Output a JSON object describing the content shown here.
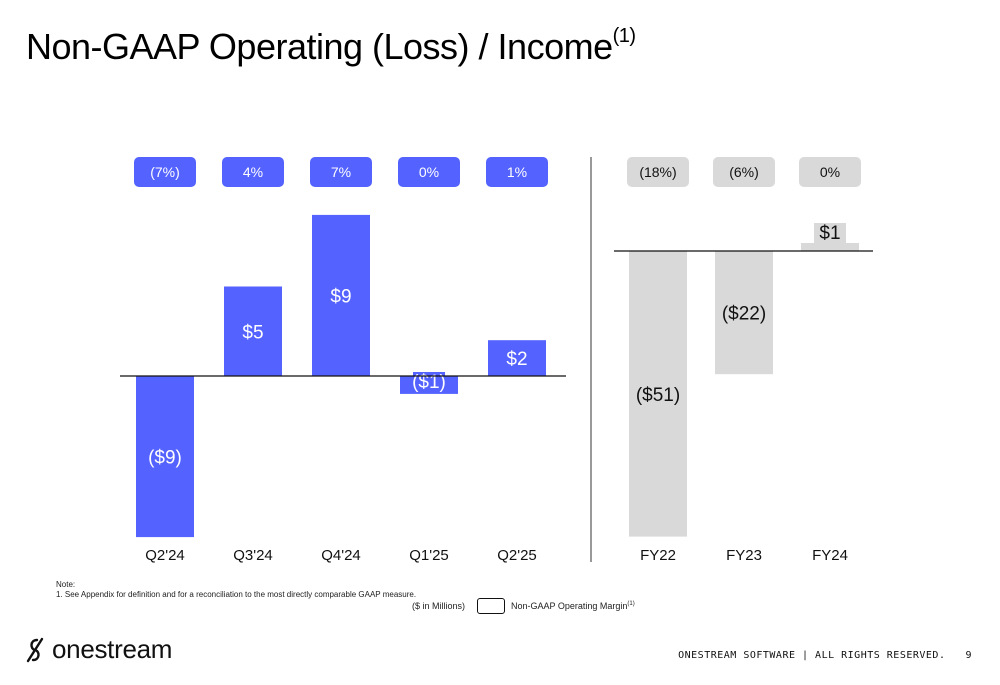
{
  "page": {
    "title": "Non-GAAP Operating (Loss) / Income",
    "title_sup": "(1)",
    "note_heading": "Note:",
    "note_text": "1.   See Appendix for definition and for a reconciliation to the most directly comparable GAAP measure.",
    "units_label": "($ in Millions)",
    "legend_label": "Non-GAAP Operating Margin",
    "legend_sup": "(1)",
    "brand": "onestream",
    "footer_text": "ONESTREAM SOFTWARE  |  ALL RIGHTS RESERVED.",
    "page_number": "9"
  },
  "colors": {
    "quarterly": "#5462ff",
    "annual": "#d9d9d9",
    "quarterly_label_text": "#ffffff",
    "annual_label_text": "#111111"
  },
  "chart_data": [
    {
      "type": "bar",
      "title": "",
      "categories": [
        "Q2'24",
        "Q3'24",
        "Q4'24",
        "Q1'25",
        "Q2'25"
      ],
      "values": [
        -9,
        5,
        9,
        -1,
        2
      ],
      "value_labels": [
        "($9)",
        "$5",
        "$9",
        "($1)",
        "$2"
      ],
      "margins": [
        "(7%)",
        "4%",
        "7%",
        "0%",
        "1%"
      ],
      "unit": "$ in Millions",
      "color": "#5462ff"
    },
    {
      "type": "bar",
      "title": "",
      "categories": [
        "FY22",
        "FY23",
        "FY24"
      ],
      "values": [
        -51,
        -22,
        1
      ],
      "value_labels": [
        "($51)",
        "($22)",
        "$1"
      ],
      "margins": [
        "(18%)",
        "(6%)",
        "0%"
      ],
      "unit": "$ in Millions",
      "color": "#d9d9d9"
    }
  ]
}
